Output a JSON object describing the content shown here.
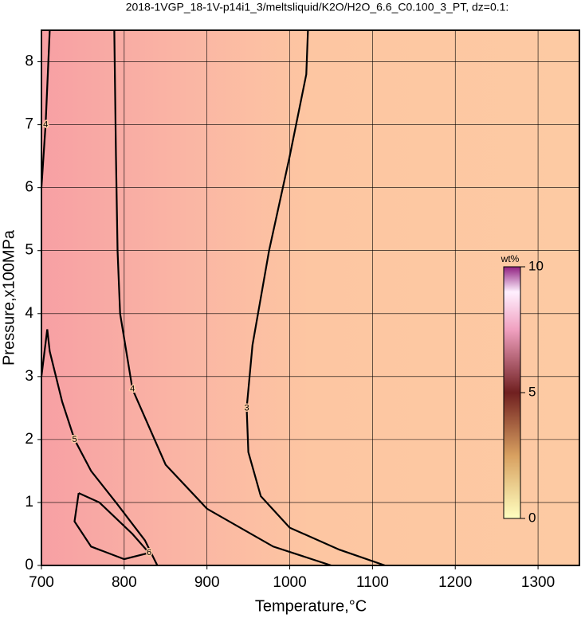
{
  "chart_data": {
    "type": "contour",
    "title": "2018-1VGP_18-1V-p14i1_3/meltsliquid/K2O/H2O_6.6_C0.100_3_PT, dz=0.1:",
    "x_label": "Temperature,°C",
    "y_label": "Pressure,x100MPa",
    "xlim": [
      700,
      1350
    ],
    "ylim": [
      0,
      8.5
    ],
    "xticks": [
      700,
      800,
      900,
      1000,
      1100,
      1200,
      1300
    ],
    "yticks": [
      0,
      1,
      2,
      3,
      4,
      5,
      6,
      7,
      8
    ],
    "grid": true,
    "contours": [
      {
        "level": 3,
        "x": [
          1115,
          1060,
          1000,
          965,
          950,
          948,
          955,
          975,
          1000,
          1020,
          1022
        ],
        "y": [
          0,
          0.25,
          0.6,
          1.1,
          1.8,
          2.5,
          3.5,
          5,
          6.5,
          7.8,
          8.5
        ]
      },
      {
        "level": 4,
        "x": [
          1050,
          980,
          900,
          850,
          810,
          795,
          792,
          790,
          788
        ],
        "y": [
          0,
          0.3,
          0.9,
          1.6,
          2.8,
          4,
          5,
          6.5,
          8.5
        ]
      },
      {
        "level": 4,
        "x": [
          700,
          705,
          710
        ],
        "y": [
          6,
          7,
          8.5
        ]
      },
      {
        "level": 5,
        "x": [
          840,
          825,
          790,
          760,
          740,
          725,
          710,
          707,
          700
        ],
        "y": [
          0,
          0.4,
          1.0,
          1.5,
          2.0,
          2.6,
          3.4,
          3.75,
          3.0
        ]
      },
      {
        "level": 6,
        "x": [
          745,
          740,
          760,
          800,
          830,
          810,
          770,
          745
        ],
        "y": [
          1.15,
          0.7,
          0.3,
          0.1,
          0.2,
          0.5,
          1.0,
          1.15
        ]
      }
    ],
    "colorbar": {
      "label": "wt%",
      "lim": [
        0,
        10
      ],
      "ticks": [
        0,
        5,
        10
      ]
    }
  }
}
